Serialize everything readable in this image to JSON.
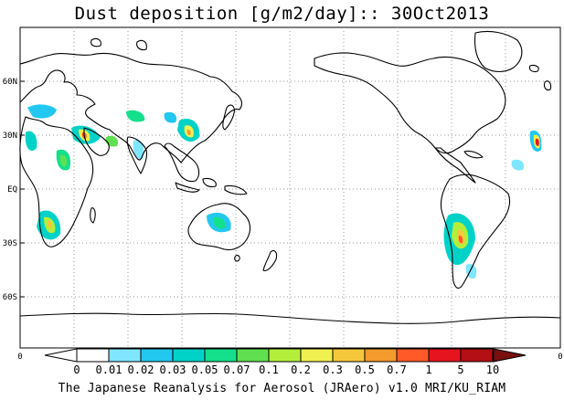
{
  "title": "Dust deposition [g/m2/day]:: 30Oct2013",
  "footer": "The Japanese Reanalysis for Aerosol (JRAero) v1.0 MRI/KU_RIAM",
  "axis": {
    "lat_labels": [
      "60N",
      "30N",
      "EQ",
      "30S",
      "60S"
    ],
    "lon_labels": [
      "0",
      "0"
    ]
  },
  "colorbar": {
    "labels": [
      "0",
      "0.01",
      "0.02",
      "0.03",
      "0.05",
      "0.07",
      "0.1",
      "0.2",
      "0.3",
      "0.5",
      "0.7",
      "1",
      "5",
      "10"
    ],
    "colors": [
      "#ffffff",
      "#ffffff",
      "#80e6ff",
      "#22c8f0",
      "#00d2c8",
      "#14e08c",
      "#60e050",
      "#b4ee3c",
      "#f0f050",
      "#f5c83c",
      "#f59a2d",
      "#ff5a28",
      "#e6141e",
      "#b40f14",
      "#781010"
    ]
  },
  "map_style": {
    "coast_color": "#000000",
    "grid_color": "#999999",
    "grid_style": "dotted"
  }
}
